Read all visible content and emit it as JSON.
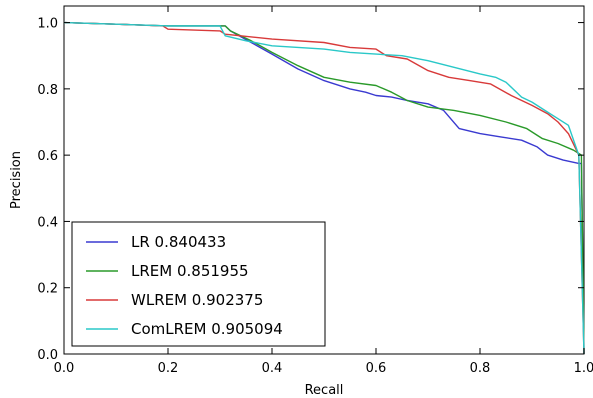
{
  "chart_data": {
    "type": "line",
    "title": "",
    "xlabel": "Recall",
    "ylabel": "Precision",
    "xlim": [
      0.0,
      1.0
    ],
    "ylim": [
      0.0,
      1.05
    ],
    "xticks": [
      "0.0",
      "0.2",
      "0.4",
      "0.6",
      "0.8",
      "1.0"
    ],
    "yticks": [
      "0.0",
      "0.2",
      "0.4",
      "0.6",
      "0.8",
      "1.0"
    ],
    "grid": false,
    "legend_position": "lower-left",
    "series": [
      {
        "name": "LR 0.840433",
        "color": "#3a3ad0",
        "points": [
          [
            0.0,
            1.0
          ],
          [
            0.1,
            0.995
          ],
          [
            0.2,
            0.99
          ],
          [
            0.31,
            0.99
          ],
          [
            0.32,
            0.975
          ],
          [
            0.36,
            0.94
          ],
          [
            0.4,
            0.905
          ],
          [
            0.45,
            0.86
          ],
          [
            0.5,
            0.825
          ],
          [
            0.55,
            0.8
          ],
          [
            0.58,
            0.79
          ],
          [
            0.6,
            0.78
          ],
          [
            0.63,
            0.775
          ],
          [
            0.66,
            0.765
          ],
          [
            0.7,
            0.755
          ],
          [
            0.73,
            0.735
          ],
          [
            0.76,
            0.68
          ],
          [
            0.8,
            0.665
          ],
          [
            0.84,
            0.655
          ],
          [
            0.88,
            0.645
          ],
          [
            0.91,
            0.625
          ],
          [
            0.93,
            0.6
          ],
          [
            0.96,
            0.585
          ],
          [
            0.99,
            0.575
          ],
          [
            0.995,
            0.575
          ],
          [
            1.0,
            0.0
          ]
        ]
      },
      {
        "name": "LREM 0.851955",
        "color": "#2a9a2a",
        "points": [
          [
            0.0,
            1.0
          ],
          [
            0.1,
            0.995
          ],
          [
            0.2,
            0.99
          ],
          [
            0.31,
            0.99
          ],
          [
            0.32,
            0.975
          ],
          [
            0.36,
            0.945
          ],
          [
            0.4,
            0.91
          ],
          [
            0.45,
            0.87
          ],
          [
            0.5,
            0.835
          ],
          [
            0.55,
            0.82
          ],
          [
            0.6,
            0.81
          ],
          [
            0.63,
            0.79
          ],
          [
            0.66,
            0.765
          ],
          [
            0.7,
            0.745
          ],
          [
            0.75,
            0.735
          ],
          [
            0.8,
            0.72
          ],
          [
            0.85,
            0.7
          ],
          [
            0.89,
            0.68
          ],
          [
            0.92,
            0.65
          ],
          [
            0.95,
            0.635
          ],
          [
            0.98,
            0.615
          ],
          [
            0.995,
            0.6
          ],
          [
            1.0,
            0.0
          ]
        ]
      },
      {
        "name": "WLREM 0.902375",
        "color": "#d83a3a",
        "points": [
          [
            0.0,
            1.0
          ],
          [
            0.1,
            0.995
          ],
          [
            0.19,
            0.99
          ],
          [
            0.2,
            0.98
          ],
          [
            0.3,
            0.975
          ],
          [
            0.31,
            0.965
          ],
          [
            0.4,
            0.95
          ],
          [
            0.5,
            0.94
          ],
          [
            0.55,
            0.925
          ],
          [
            0.6,
            0.92
          ],
          [
            0.62,
            0.9
          ],
          [
            0.66,
            0.89
          ],
          [
            0.7,
            0.855
          ],
          [
            0.74,
            0.835
          ],
          [
            0.78,
            0.825
          ],
          [
            0.82,
            0.815
          ],
          [
            0.86,
            0.78
          ],
          [
            0.9,
            0.75
          ],
          [
            0.93,
            0.725
          ],
          [
            0.95,
            0.7
          ],
          [
            0.97,
            0.665
          ],
          [
            0.99,
            0.6
          ],
          [
            1.0,
            0.0
          ]
        ]
      },
      {
        "name": "ComLREM 0.905094",
        "color": "#2ac8c8",
        "points": [
          [
            0.0,
            1.0
          ],
          [
            0.1,
            0.995
          ],
          [
            0.2,
            0.99
          ],
          [
            0.3,
            0.99
          ],
          [
            0.31,
            0.96
          ],
          [
            0.35,
            0.945
          ],
          [
            0.4,
            0.93
          ],
          [
            0.5,
            0.92
          ],
          [
            0.55,
            0.91
          ],
          [
            0.6,
            0.905
          ],
          [
            0.65,
            0.9
          ],
          [
            0.7,
            0.885
          ],
          [
            0.75,
            0.865
          ],
          [
            0.8,
            0.845
          ],
          [
            0.83,
            0.835
          ],
          [
            0.85,
            0.82
          ],
          [
            0.88,
            0.775
          ],
          [
            0.9,
            0.76
          ],
          [
            0.93,
            0.73
          ],
          [
            0.95,
            0.71
          ],
          [
            0.97,
            0.69
          ],
          [
            0.99,
            0.6
          ],
          [
            1.0,
            0.0
          ]
        ]
      }
    ]
  }
}
